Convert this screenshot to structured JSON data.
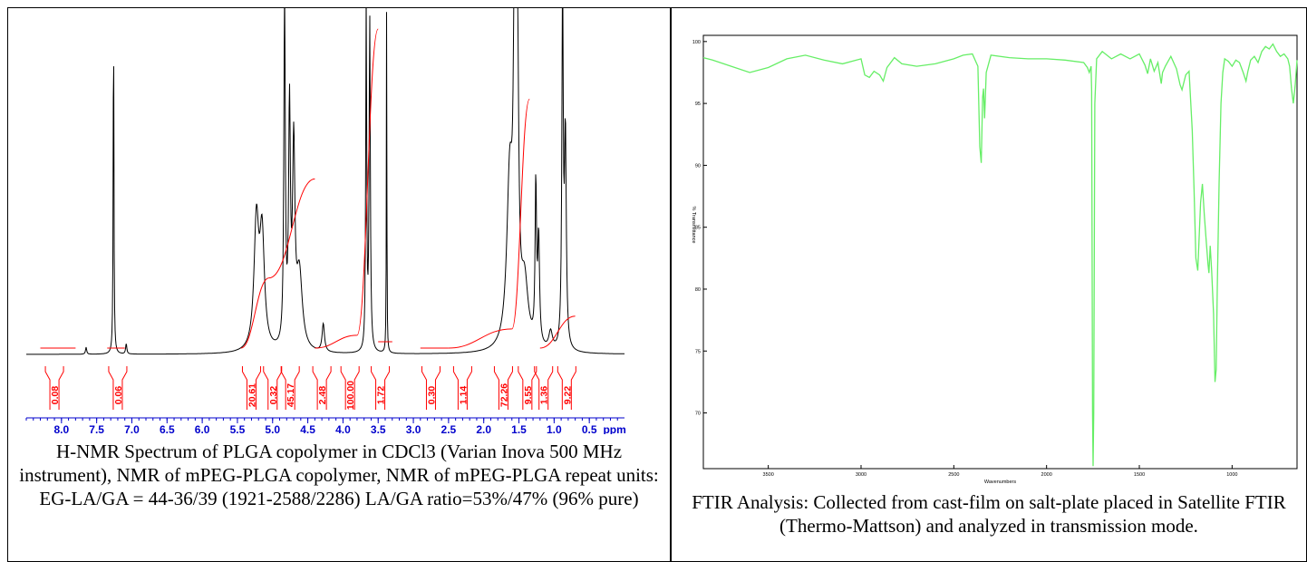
{
  "chart_data": [
    {
      "type": "line",
      "title": "",
      "caption": "H-NMR Spectrum of PLGA copolymer in CDCl3 (Varian Inova 500 MHz instrument), NMR of mPEG-PLGA copolymer, NMR of mPEG-PLGA repeat units: EG-LA/GA = 44-36/39 (1921-2588/2286) LA/GA ratio=53%/47% (96% pure)",
      "xlabel": "ppm",
      "x_reversed": true,
      "xlim": [
        8.5,
        0.0
      ],
      "x_ticks": [
        "8.0",
        "7.5",
        "7.0",
        "6.5",
        "6.0",
        "5.5",
        "5.0",
        "4.5",
        "4.0",
        "3.5",
        "3.0",
        "2.5",
        "2.0",
        "1.5",
        "1.0",
        "0.5"
      ],
      "series": [
        {
          "role": "spectrum",
          "color": "#000000",
          "peaks": [
            {
              "ppm": 7.26,
              "height": 1.0,
              "width": 0.006
            },
            {
              "ppm": 7.65,
              "height": 0.02,
              "width": 0.01
            },
            {
              "ppm": 7.08,
              "height": 0.03,
              "width": 0.01
            },
            {
              "ppm": 5.23,
              "height": 0.36,
              "width": 0.04
            },
            {
              "ppm": 5.15,
              "height": 0.32,
              "width": 0.04
            },
            {
              "ppm": 4.83,
              "height": 1.0,
              "width": 0.012
            },
            {
              "ppm": 4.76,
              "height": 0.66,
              "width": 0.015
            },
            {
              "ppm": 4.7,
              "height": 0.55,
              "width": 0.02
            },
            {
              "ppm": 4.62,
              "height": 0.22,
              "width": 0.05
            },
            {
              "ppm": 4.28,
              "height": 0.08,
              "width": 0.02
            },
            {
              "ppm": 3.67,
              "height": 1.0,
              "width": 0.008
            },
            {
              "ppm": 3.62,
              "height": 0.95,
              "width": 0.01
            },
            {
              "ppm": 3.38,
              "height": 1.0,
              "width": 0.004
            },
            {
              "ppm": 1.63,
              "height": 0.48,
              "width": 0.05
            },
            {
              "ppm": 1.56,
              "height": 1.0,
              "width": 0.02
            },
            {
              "ppm": 1.52,
              "height": 0.72,
              "width": 0.02
            },
            {
              "ppm": 1.42,
              "height": 0.18,
              "width": 0.06
            },
            {
              "ppm": 1.26,
              "height": 0.45,
              "width": 0.012
            },
            {
              "ppm": 1.22,
              "height": 0.3,
              "width": 0.015
            },
            {
              "ppm": 1.05,
              "height": 0.05,
              "width": 0.03
            },
            {
              "ppm": 0.88,
              "height": 1.0,
              "width": 0.012
            },
            {
              "ppm": 0.84,
              "height": 0.6,
              "width": 0.015
            }
          ]
        },
        {
          "role": "integral",
          "color": "#ff0000",
          "steps": [
            {
              "from": 8.3,
              "to": 7.8,
              "start": 0.0,
              "end": 0.0
            },
            {
              "from": 7.35,
              "to": 7.1,
              "start": 0.0,
              "end": 0.0
            },
            {
              "from": 5.45,
              "to": 5.05,
              "start": 0.0,
              "end": 0.22
            },
            {
              "from": 5.05,
              "to": 4.4,
              "start": 0.22,
              "end": 0.53
            },
            {
              "from": 4.4,
              "to": 3.8,
              "start": 0.0,
              "end": 0.04
            },
            {
              "from": 3.8,
              "to": 3.5,
              "start": 0.04,
              "end": 1.0
            },
            {
              "from": 3.5,
              "to": 3.3,
              "start": 0.02,
              "end": 0.02
            },
            {
              "from": 2.9,
              "to": 2.5,
              "start": 0.0,
              "end": 0.0
            },
            {
              "from": 2.5,
              "to": 1.6,
              "start": 0.0,
              "end": 0.06
            },
            {
              "from": 1.6,
              "to": 1.35,
              "start": 0.06,
              "end": 0.78
            },
            {
              "from": 1.2,
              "to": 0.7,
              "start": 0.0,
              "end": 0.1
            }
          ]
        }
      ],
      "integrals": [
        {
          "label": "0.08",
          "ppm": 8.1
        },
        {
          "label": "0.06",
          "ppm": 7.2
        },
        {
          "label": "20.61",
          "ppm": 5.3
        },
        {
          "label": "0.32",
          "ppm": 5.0
        },
        {
          "label": "45.17",
          "ppm": 4.75
        },
        {
          "label": "2.48",
          "ppm": 4.3
        },
        {
          "label": "100.00",
          "ppm": 3.9
        },
        {
          "label": "1.72",
          "ppm": 3.47
        },
        {
          "label": "0.30",
          "ppm": 2.75
        },
        {
          "label": "1.14",
          "ppm": 2.3
        },
        {
          "label": "72.26",
          "ppm": 1.72
        },
        {
          "label": "9.55",
          "ppm": 1.38
        },
        {
          "label": "1.36",
          "ppm": 1.15
        },
        {
          "label": "9.22",
          "ppm": 0.82
        }
      ],
      "colors": {
        "axis": "#0000cc",
        "integral": "#ff0000",
        "spectrum": "#000000"
      }
    },
    {
      "type": "line",
      "title": "",
      "caption": "FTIR Analysis: Collected from cast-film on salt-plate placed in Satellite FTIR (Thermo-Mattson) and analyzed in transmission mode.",
      "xlabel": "Wavenumbers",
      "ylabel": "% Transmittance",
      "x_reversed": true,
      "xlim": [
        3850,
        650
      ],
      "ylim": [
        65.5,
        100.5
      ],
      "x_ticks": [
        "3500",
        "3000",
        "2500",
        "2000",
        "1500",
        "1000"
      ],
      "y_ticks": [
        "100",
        "95",
        "90",
        "85",
        "80",
        "75",
        "70"
      ],
      "series": [
        {
          "name": "",
          "color": "#66ee66",
          "points": [
            [
              3850,
              98.7
            ],
            [
              3800,
              98.5
            ],
            [
              3700,
              98.0
            ],
            [
              3600,
              97.5
            ],
            [
              3500,
              97.9
            ],
            [
              3400,
              98.6
            ],
            [
              3300,
              98.9
            ],
            [
              3200,
              98.5
            ],
            [
              3100,
              98.2
            ],
            [
              3000,
              98.6
            ],
            [
              2980,
              97.3
            ],
            [
              2955,
              97.1
            ],
            [
              2930,
              97.6
            ],
            [
              2900,
              97.3
            ],
            [
              2880,
              96.8
            ],
            [
              2860,
              97.9
            ],
            [
              2820,
              98.7
            ],
            [
              2780,
              98.2
            ],
            [
              2700,
              98.0
            ],
            [
              2600,
              98.2
            ],
            [
              2500,
              98.6
            ],
            [
              2450,
              98.9
            ],
            [
              2400,
              99.0
            ],
            [
              2370,
              98.0
            ],
            [
              2360,
              91.5
            ],
            [
              2352,
              90.2
            ],
            [
              2345,
              95.5
            ],
            [
              2340,
              96.2
            ],
            [
              2334,
              93.8
            ],
            [
              2325,
              97.5
            ],
            [
              2300,
              98.9
            ],
            [
              2200,
              98.7
            ],
            [
              2100,
              98.6
            ],
            [
              2000,
              98.6
            ],
            [
              1900,
              98.5
            ],
            [
              1800,
              98.3
            ],
            [
              1780,
              97.9
            ],
            [
              1770,
              97.5
            ],
            [
              1760,
              98.0
            ],
            [
              1757,
              96.0
            ],
            [
              1752,
              70.0
            ],
            [
              1749,
              65.7
            ],
            [
              1746,
              70.0
            ],
            [
              1740,
              95.0
            ],
            [
              1730,
              98.6
            ],
            [
              1700,
              99.2
            ],
            [
              1650,
              98.6
            ],
            [
              1600,
              99.0
            ],
            [
              1550,
              98.6
            ],
            [
              1500,
              99.0
            ],
            [
              1470,
              98.1
            ],
            [
              1455,
              97.4
            ],
            [
              1440,
              98.6
            ],
            [
              1420,
              97.6
            ],
            [
              1400,
              98.3
            ],
            [
              1382,
              96.6
            ],
            [
              1375,
              97.5
            ],
            [
              1360,
              98.0
            ],
            [
              1330,
              98.8
            ],
            [
              1300,
              97.8
            ],
            [
              1280,
              96.5
            ],
            [
              1270,
              96.1
            ],
            [
              1250,
              97.3
            ],
            [
              1232,
              97.6
            ],
            [
              1215,
              92.8
            ],
            [
              1205,
              88.0
            ],
            [
              1195,
              82.5
            ],
            [
              1185,
              81.5
            ],
            [
              1178,
              84.0
            ],
            [
              1170,
              87.0
            ],
            [
              1160,
              88.5
            ],
            [
              1150,
              86.0
            ],
            [
              1140,
              84.0
            ],
            [
              1130,
              82.0
            ],
            [
              1125,
              81.3
            ],
            [
              1118,
              83.5
            ],
            [
              1110,
              81.5
            ],
            [
              1100,
              78.0
            ],
            [
              1092,
              72.5
            ],
            [
              1086,
              73.5
            ],
            [
              1080,
              80.0
            ],
            [
              1070,
              88.5
            ],
            [
              1060,
              95.0
            ],
            [
              1050,
              97.5
            ],
            [
              1040,
              98.6
            ],
            [
              1020,
              98.4
            ],
            [
              1000,
              98.0
            ],
            [
              980,
              98.5
            ],
            [
              960,
              98.3
            ],
            [
              940,
              97.5
            ],
            [
              925,
              96.8
            ],
            [
              915,
              97.6
            ],
            [
              900,
              98.5
            ],
            [
              880,
              98.8
            ],
            [
              860,
              98.3
            ],
            [
              840,
              99.2
            ],
            [
              820,
              99.6
            ],
            [
              800,
              99.4
            ],
            [
              780,
              99.8
            ],
            [
              760,
              99.2
            ],
            [
              740,
              98.8
            ],
            [
              720,
              99.0
            ],
            [
              700,
              98.6
            ],
            [
              690,
              98.0
            ],
            [
              680,
              96.2
            ],
            [
              670,
              95.0
            ],
            [
              660,
              96.5
            ],
            [
              650,
              98.5
            ]
          ]
        }
      ]
    }
  ]
}
